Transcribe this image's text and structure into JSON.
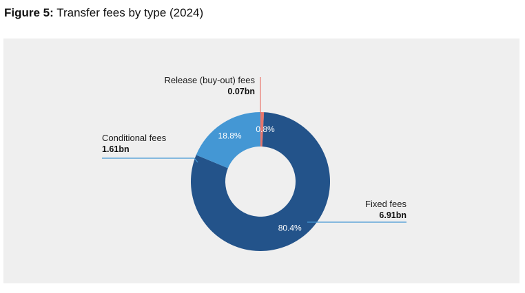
{
  "figure": {
    "number_label": "Figure 5:",
    "title": "Transfer fees by type (2024)"
  },
  "chart_data": {
    "type": "pie",
    "variant": "donut",
    "title": "Transfer fees by type (2024)",
    "unit": "bn",
    "slices": [
      {
        "name": "Release (buy-out) fees",
        "value": 0.07,
        "value_label": "0.07bn",
        "percent": 0.8,
        "percent_label": "0.8%",
        "color": "#e8756b"
      },
      {
        "name": "Fixed fees",
        "value": 6.91,
        "value_label": "6.91bn",
        "percent": 80.4,
        "percent_label": "80.4%",
        "color": "#23538a"
      },
      {
        "name": "Conditional fees",
        "value": 1.61,
        "value_label": "1.61bn",
        "percent": 18.8,
        "percent_label": "18.8%",
        "color": "#4497d4"
      }
    ],
    "legend": "callouts"
  },
  "colors": {
    "panel_background": "#efefef",
    "leader_line_blue": "#4497d4",
    "leader_line_red": "#e8756b"
  }
}
